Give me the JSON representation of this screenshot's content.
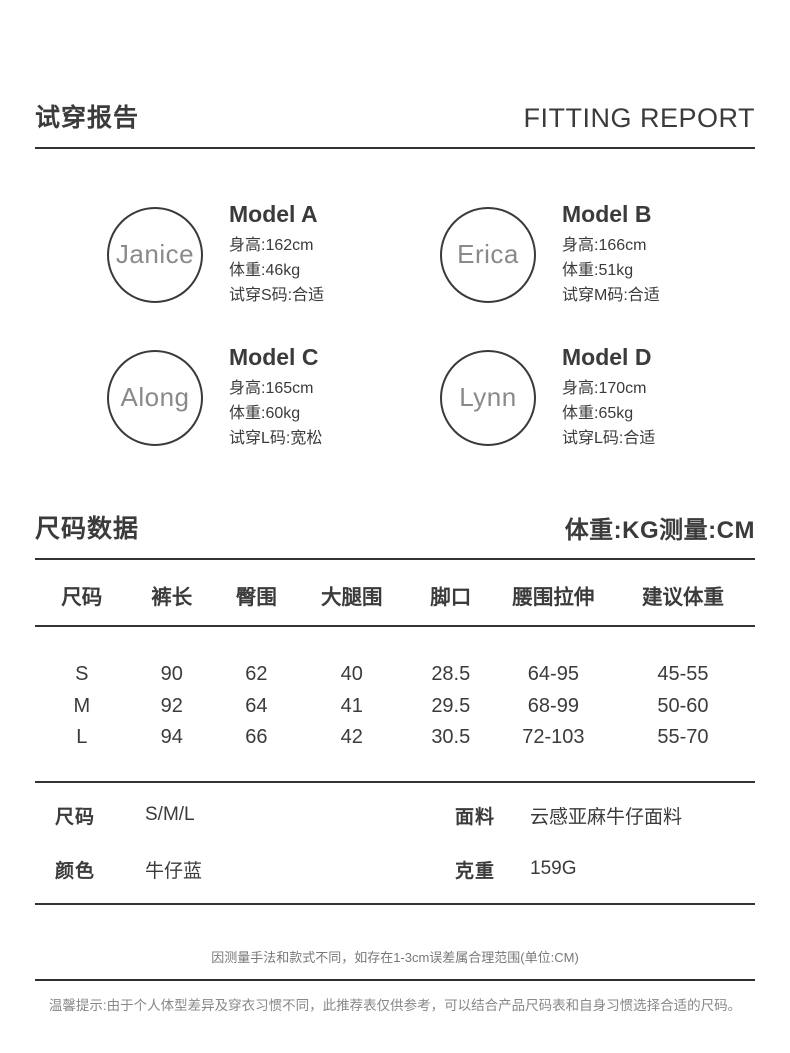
{
  "header": {
    "title_cn": "试穿报告",
    "title_en": "FITTING REPORT"
  },
  "models": [
    {
      "name": "Janice",
      "label": "Model A",
      "height": "身高:162cm",
      "weight": "体重:46kg",
      "fit": "试穿S码:合适"
    },
    {
      "name": "Erica",
      "label": "Model B",
      "height": "身高:166cm",
      "weight": "体重:51kg",
      "fit": "试穿M码:合适"
    },
    {
      "name": "Along",
      "label": "Model C",
      "height": "身高:165cm",
      "weight": "体重:60kg",
      "fit": "试穿L码:宽松"
    },
    {
      "name": "Lynn",
      "label": "Model D",
      "height": "身高:170cm",
      "weight": "体重:65kg",
      "fit": "试穿L码:合适"
    }
  ],
  "size_section": {
    "title": "尺码数据",
    "unit_note": "体重:KG测量:CM"
  },
  "size_table": {
    "headers": [
      "尺码",
      "裤长",
      "臀围",
      "大腿围",
      "脚口",
      "腰围拉伸",
      "建议体重"
    ],
    "rows": [
      [
        "S",
        "90",
        "62",
        "40",
        "28.5",
        "64-95",
        "45-55"
      ],
      [
        "M",
        "92",
        "64",
        "41",
        "29.5",
        "68-99",
        "50-60"
      ],
      [
        "L",
        "94",
        "66",
        "42",
        "30.5",
        "72-103",
        "55-70"
      ]
    ]
  },
  "product_info": {
    "rows": [
      {
        "label1": "尺码",
        "value1": "S/M/L",
        "label2": "面料",
        "value2": "云感亚麻牛仔面料"
      },
      {
        "label1": "颜色",
        "value1": "牛仔蓝",
        "label2": "克重",
        "value2": "159G"
      }
    ]
  },
  "footnotes": {
    "measurement_note": "因测量手法和款式不同，如存在1-3cm误差属合理范围(单位:CM)",
    "tip": "温馨提示:由于个人体型差异及穿衣习惯不同，此推荐表仅供参考，可以结合产品尺码表和自身习惯选择合适的尺码。"
  },
  "colors": {
    "text_dark": "#3b3b3b",
    "name_gray": "#8a8a8a",
    "note_gray": "#787878",
    "line": "#333333"
  }
}
